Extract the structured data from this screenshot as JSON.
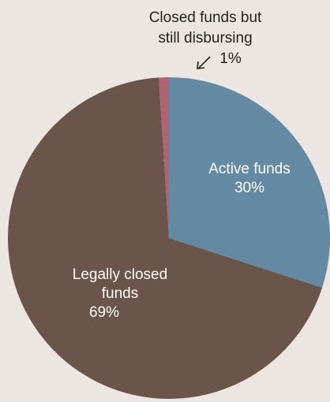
{
  "chart_data": {
    "type": "pie",
    "colors": {
      "Active funds": "#6489a3",
      "Legally closed funds": "#6b5449",
      "Closed funds but still disbursing": "#b06470",
      "background": "#ebe6e2"
    },
    "slices": [
      {
        "key": "active",
        "value": 30,
        "color": "#6489a3",
        "label_lines": [
          "Active funds",
          "30%"
        ],
        "label_color": "#ffffff"
      },
      {
        "key": "legally_closed",
        "value": 69,
        "color": "#6b5449",
        "label_lines": [
          "Legally closed",
          "funds",
          "69%"
        ],
        "label_color": "#ffffff"
      },
      {
        "key": "closed_disbursing",
        "value": 1,
        "color": "#b06470",
        "label_lines": [
          "Closed funds but",
          "still disbursing",
          "1%"
        ],
        "label_color": "#222222"
      }
    ]
  }
}
